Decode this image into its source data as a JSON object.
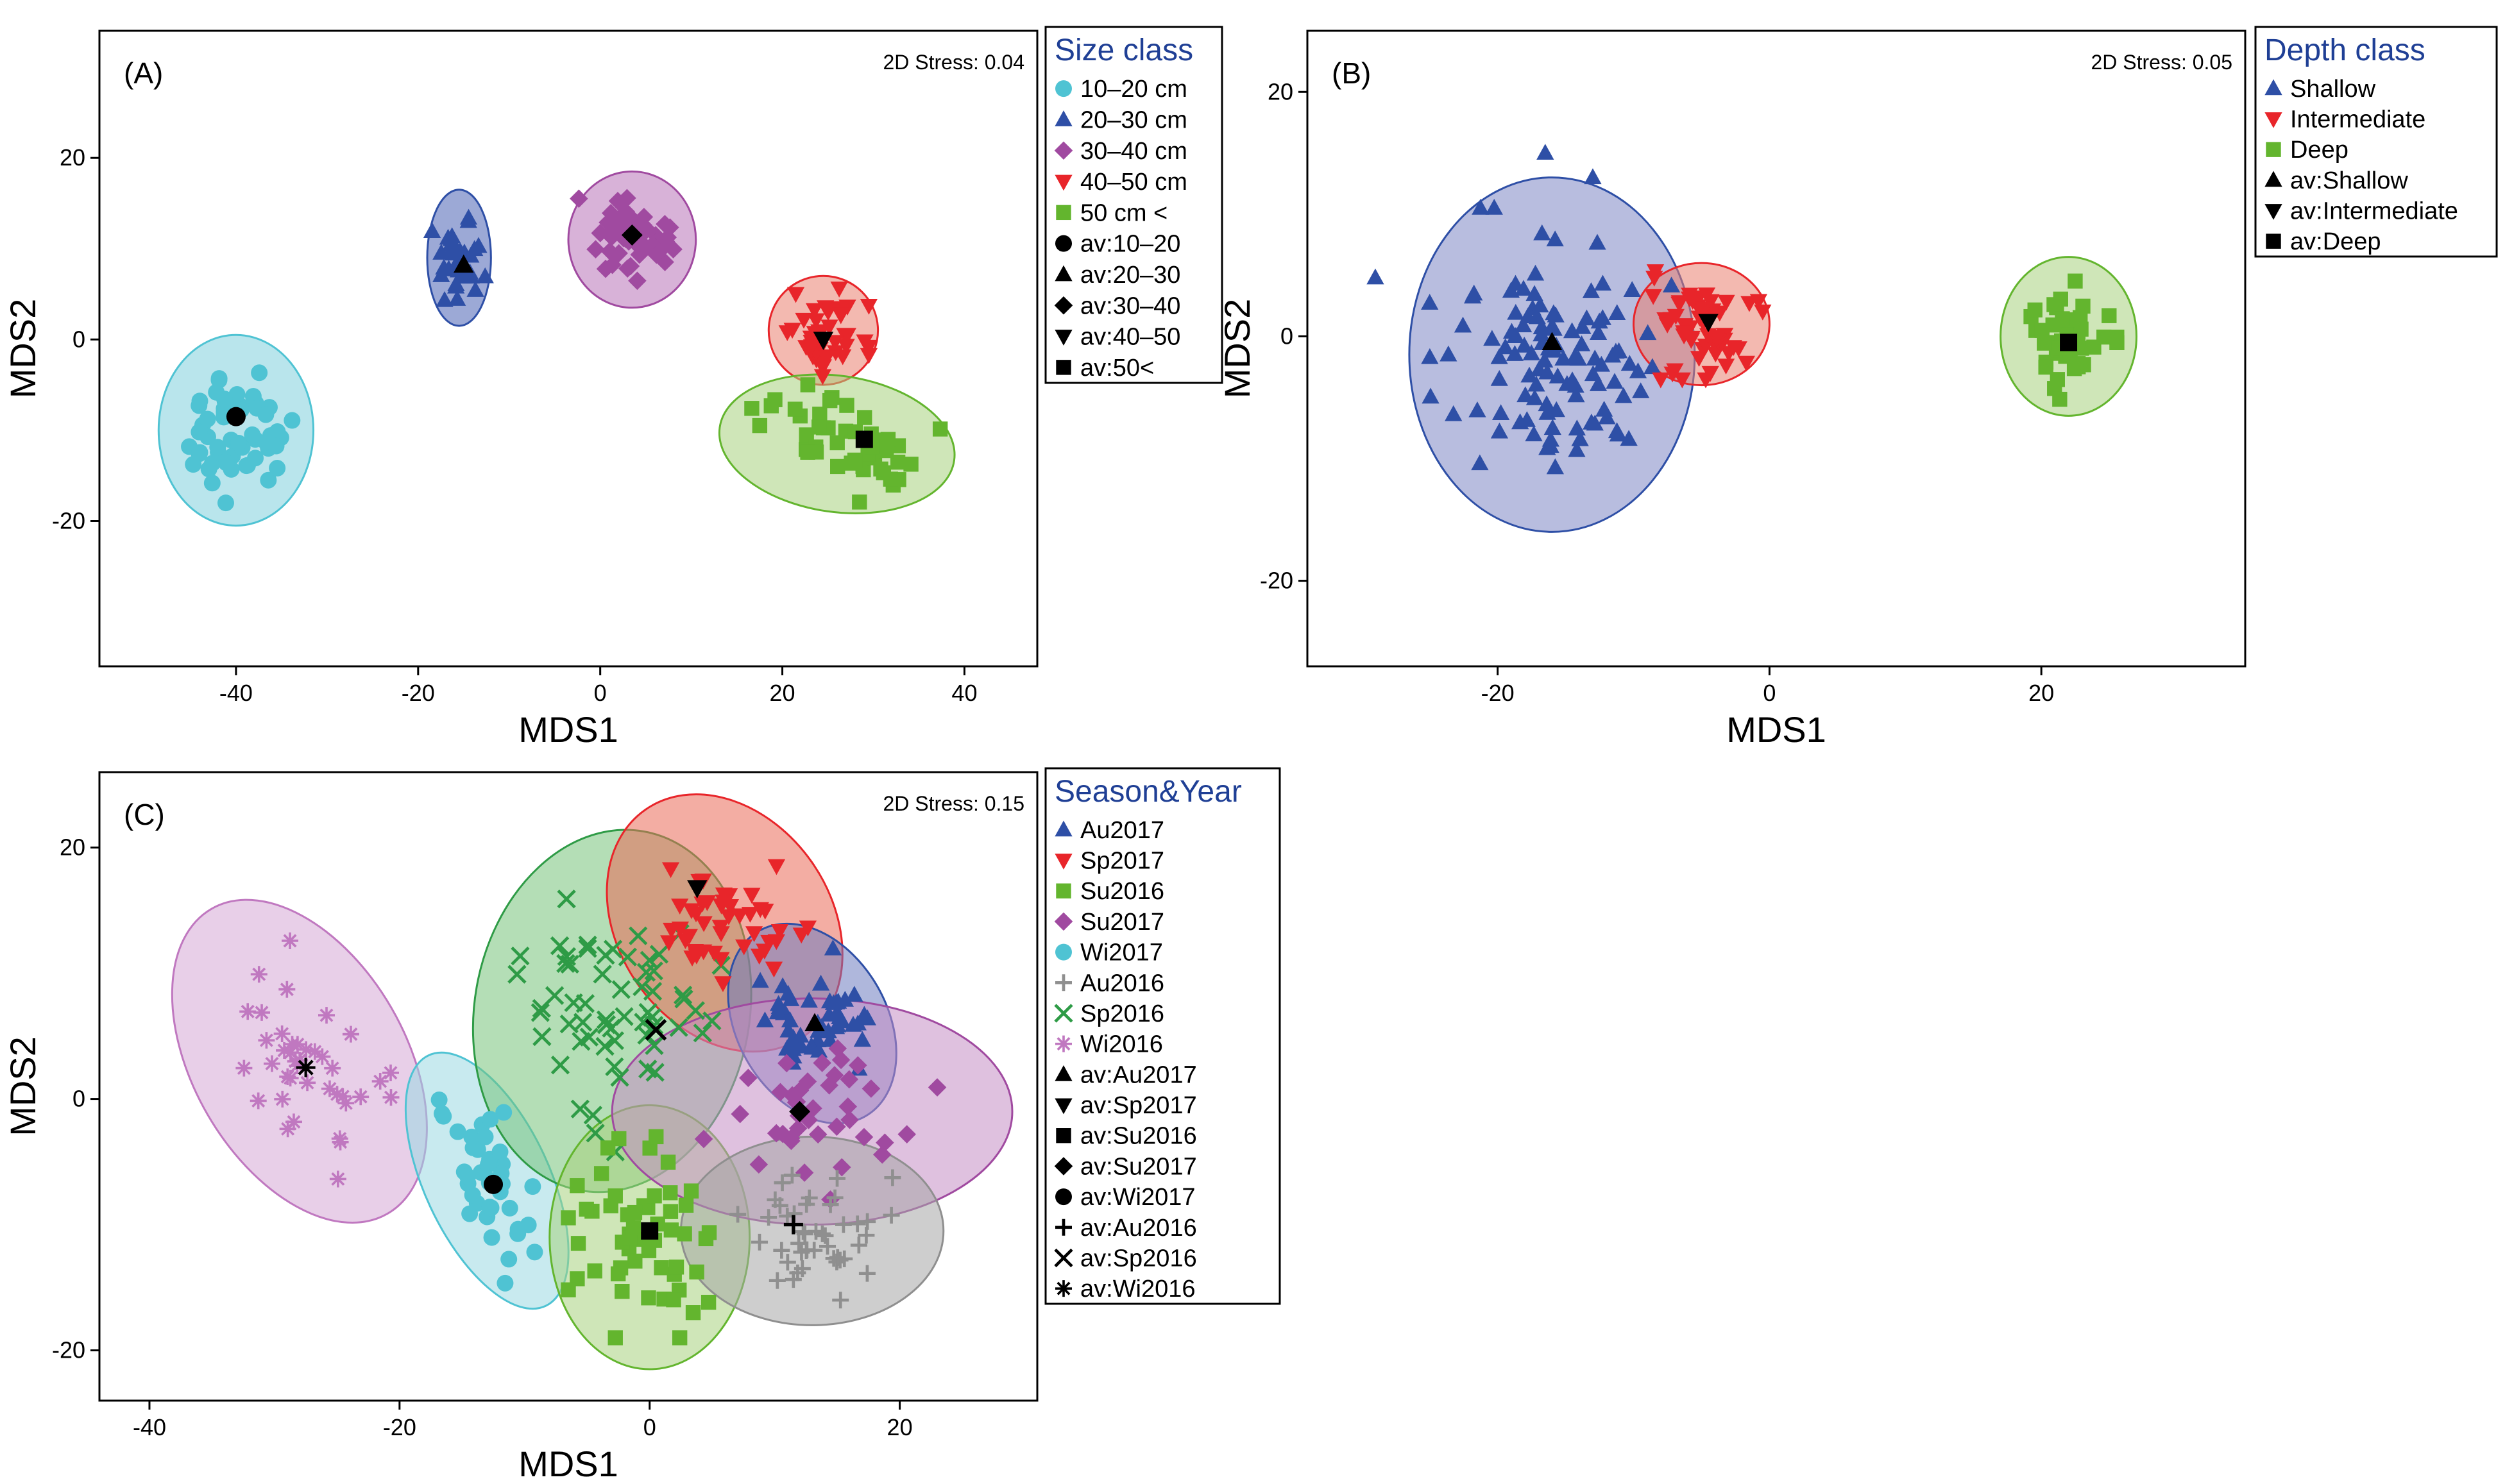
{
  "figure": {
    "description": "Three MDS ordination panels of fish diet/trait similarity",
    "panel_labels": [
      "(A)",
      "(B)",
      "(C)"
    ]
  },
  "chart_data": [
    {
      "id": "A",
      "type": "scatter",
      "panel_label": "(A)",
      "stress_label": "2D Stress: 0.04",
      "xlabel": "MDS1",
      "ylabel": "MDS2",
      "xlim": [
        -55,
        48
      ],
      "ylim": [
        -36,
        34
      ],
      "xticks": [
        -40,
        -20,
        0,
        20,
        40
      ],
      "yticks": [
        -20,
        0,
        20
      ],
      "legend_title": "Size class",
      "legend": [
        "10–20 cm",
        "20–30 cm",
        "30–40 cm",
        "40–50 cm",
        "50 cm <",
        "av:10–20",
        "av:20–30",
        "av:30–40",
        "av:40–50",
        "av:50<"
      ],
      "series": [
        {
          "name": "10–20 cm",
          "marker": "circle",
          "color": "#4fc3d3",
          "fill": "#7fd0dc",
          "ellipse": {
            "cx": -40,
            "cy": -10,
            "rx": 8.5,
            "ry": 10.5,
            "rot": 0
          },
          "spread": [
            7,
            8
          ],
          "n": 55,
          "av": [
            -40,
            -8.5
          ]
        },
        {
          "name": "20–30 cm",
          "marker": "triangle",
          "color": "#2e4fa6",
          "fill": "#4a62b4",
          "ellipse": {
            "cx": -15.5,
            "cy": 9,
            "rx": 3.5,
            "ry": 7.5,
            "rot": 0
          },
          "spread": [
            3,
            5.5
          ],
          "n": 35,
          "av": [
            -15,
            8.2
          ]
        },
        {
          "name": "30–40 cm",
          "marker": "diamond",
          "color": "#a04aa0",
          "fill": "#b873b8",
          "ellipse": {
            "cx": 3.5,
            "cy": 11,
            "rx": 7,
            "ry": 7.5,
            "rot": 0
          },
          "spread": [
            6,
            6
          ],
          "n": 50,
          "av": [
            3.5,
            11.5
          ]
        },
        {
          "name": "40–50 cm",
          "marker": "triangle-down",
          "color": "#e8252a",
          "fill": "#ea8070",
          "ellipse": {
            "cx": 24.5,
            "cy": 1,
            "rx": 6,
            "ry": 6,
            "rot": 0
          },
          "spread": [
            5,
            5
          ],
          "n": 45,
          "av": [
            24.5,
            0
          ]
        },
        {
          "name": "50 cm <",
          "marker": "square",
          "color": "#63b52e",
          "fill": "#a8d27e",
          "ellipse": {
            "cx": 26,
            "cy": -11.5,
            "rx": 13,
            "ry": 7.5,
            "rot": -8
          },
          "spread": [
            11,
            6
          ],
          "n": 45,
          "av": [
            29,
            -11
          ]
        }
      ]
    },
    {
      "id": "B",
      "type": "scatter",
      "panel_label": "(B)",
      "stress_label": "2D Stress: 0.05",
      "xlabel": "MDS1",
      "ylabel": "MDS2",
      "xlim": [
        -34,
        35
      ],
      "ylim": [
        -27,
        25
      ],
      "xticks": [
        -20,
        0,
        20
      ],
      "yticks": [
        -20,
        0,
        20
      ],
      "legend_title": "Depth class",
      "legend": [
        "Shallow",
        "Intermediate",
        "Deep",
        "av:Shallow",
        "av:Intermediate",
        "av:Deep"
      ],
      "series": [
        {
          "name": "Shallow",
          "marker": "triangle",
          "color": "#2e4fa6",
          "fill": "#7e86c4",
          "ellipse": {
            "cx": -16,
            "cy": -1.5,
            "rx": 10.5,
            "ry": 14.5,
            "rot": 0
          },
          "spread": [
            9,
            12
          ],
          "n": 110,
          "av": [
            -16,
            -0.5
          ]
        },
        {
          "name": "Intermediate",
          "marker": "triangle-down",
          "color": "#e8252a",
          "fill": "#ea8070",
          "ellipse": {
            "cx": -5,
            "cy": 1,
            "rx": 5,
            "ry": 5,
            "rot": 0
          },
          "spread": [
            4.5,
            4.5
          ],
          "n": 60,
          "av": [
            -4.5,
            1.2
          ]
        },
        {
          "name": "Deep",
          "marker": "square",
          "color": "#63b52e",
          "fill": "#a8d27e",
          "ellipse": {
            "cx": 22,
            "cy": 0,
            "rx": 5,
            "ry": 6.5,
            "rot": 0
          },
          "spread": [
            4.5,
            5.5
          ],
          "n": 40,
          "av": [
            22,
            -0.5
          ]
        }
      ],
      "extra_points": [
        {
          "series": "Shallow",
          "x": -29,
          "y": 4.8
        },
        {
          "series": "Shallow",
          "x": -16.5,
          "y": 15
        },
        {
          "series": "Shallow",
          "x": -13,
          "y": 13
        }
      ]
    },
    {
      "id": "C",
      "type": "scatter",
      "panel_label": "(C)",
      "stress_label": "2D Stress: 0.15",
      "xlabel": "MDS1",
      "ylabel": "MDS2",
      "xlim": [
        -44,
        31
      ],
      "ylim": [
        -24,
        26
      ],
      "xticks": [
        -40,
        -20,
        0,
        20
      ],
      "yticks": [
        -20,
        0,
        20
      ],
      "legend_title": "Season&Year",
      "legend": [
        "Au2017",
        "Sp2017",
        "Su2016",
        "Su2017",
        "Wi2017",
        "Au2016",
        "Sp2016",
        "Wi2016",
        "av:Au2017",
        "av:Sp2017",
        "av:Su2016",
        "av:Su2017",
        "av:Wi2017",
        "av:Au2016",
        "av:Sp2016",
        "av:Wi2016"
      ],
      "series": [
        {
          "name": "Wi2016",
          "marker": "asterisk",
          "color": "#c078c0",
          "fill": "#d6a8d6",
          "ellipse": {
            "cx": -28,
            "cy": 3,
            "rx": 8.5,
            "ry": 14,
            "rot": 30
          },
          "spread": [
            6,
            11
          ],
          "n": 40,
          "av": [
            -27.5,
            2.5
          ]
        },
        {
          "name": "Wi2017",
          "marker": "circle",
          "color": "#4fc3d3",
          "fill": "#9ad8e2",
          "ellipse": {
            "cx": -13,
            "cy": -6.5,
            "rx": 5,
            "ry": 11,
            "rot": 25
          },
          "spread": [
            3.5,
            8
          ],
          "n": 40,
          "av": [
            -12.5,
            -6.8
          ]
        },
        {
          "name": "Sp2016",
          "marker": "cross",
          "color": "#2e9b46",
          "fill": "#76c27a",
          "ellipse": {
            "cx": -3,
            "cy": 7,
            "rx": 11,
            "ry": 14.5,
            "rot": -10
          },
          "spread": [
            8,
            11
          ],
          "n": 60,
          "av": [
            0.5,
            5.5
          ]
        },
        {
          "name": "Su2016",
          "marker": "square",
          "color": "#63b52e",
          "fill": "#a8d27e",
          "ellipse": {
            "cx": 0,
            "cy": -11,
            "rx": 8,
            "ry": 10.5,
            "rot": 0
          },
          "spread": [
            6.5,
            8
          ],
          "n": 55,
          "av": [
            0,
            -10.5
          ]
        },
        {
          "name": "Sp2017",
          "marker": "triangle-down",
          "color": "#e8252a",
          "fill": "#ea6a58",
          "ellipse": {
            "cx": 6,
            "cy": 14,
            "rx": 8.5,
            "ry": 11,
            "rot": 35
          },
          "spread": [
            6,
            6
          ],
          "n": 45,
          "av": [
            3.8,
            16.8
          ]
        },
        {
          "name": "Au2017",
          "marker": "triangle",
          "color": "#2e4fa6",
          "fill": "#6d7cc0",
          "ellipse": {
            "cx": 13,
            "cy": 6,
            "rx": 6,
            "ry": 8.5,
            "rot": 30
          },
          "spread": [
            5,
            5
          ],
          "n": 50,
          "av": [
            13.2,
            6
          ]
        },
        {
          "name": "Su2017",
          "marker": "diamond",
          "color": "#a04aa0",
          "fill": "#c58ec5",
          "ellipse": {
            "cx": 13,
            "cy": -1,
            "rx": 16,
            "ry": 9,
            "rot": 0
          },
          "spread": [
            10,
            7
          ],
          "n": 40,
          "av": [
            12,
            -1
          ]
        },
        {
          "name": "Au2016",
          "marker": "plus",
          "color": "#8f8f8f",
          "fill": "#a5a5a5",
          "ellipse": {
            "cx": 13,
            "cy": -10.5,
            "rx": 10.5,
            "ry": 7.5,
            "rot": 0
          },
          "spread": [
            8,
            5.5
          ],
          "n": 45,
          "av": [
            11.5,
            -10
          ]
        }
      ]
    }
  ]
}
